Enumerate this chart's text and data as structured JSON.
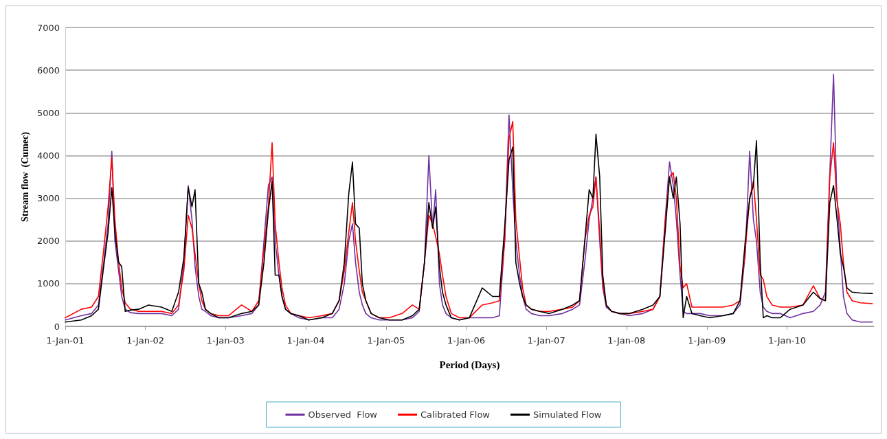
{
  "chart_data": {
    "type": "line",
    "xlabel": "Period (Days)",
    "ylabel": "Stream flow  (Cumec)",
    "x": [
      "2001-01-01",
      "2001-03-15",
      "2001-05-01",
      "2001-06-01",
      "2001-06-25",
      "2001-07-15",
      "2001-08-01",
      "2001-08-15",
      "2001-09-01",
      "2001-09-15",
      "2001-10-01",
      "2001-10-25",
      "2001-12-01",
      "2002-01-15",
      "2002-03-15",
      "2002-05-01",
      "2002-06-01",
      "2002-06-25",
      "2002-07-15",
      "2002-08-01",
      "2002-08-15",
      "2002-09-01",
      "2002-09-15",
      "2002-10-01",
      "2002-10-25",
      "2002-12-01",
      "2003-01-15",
      "2003-03-15",
      "2003-05-01",
      "2003-06-01",
      "2003-06-25",
      "2003-07-15",
      "2003-08-01",
      "2003-08-15",
      "2003-09-01",
      "2003-09-15",
      "2003-10-01",
      "2003-10-25",
      "2003-12-01",
      "2004-01-15",
      "2004-03-15",
      "2004-05-01",
      "2004-06-01",
      "2004-06-25",
      "2004-07-15",
      "2004-08-01",
      "2004-08-15",
      "2004-09-01",
      "2004-09-15",
      "2004-10-01",
      "2004-10-25",
      "2004-12-01",
      "2005-01-15",
      "2005-03-15",
      "2005-05-01",
      "2005-06-01",
      "2005-06-25",
      "2005-07-15",
      "2005-08-01",
      "2005-08-15",
      "2005-09-01",
      "2005-09-15",
      "2005-10-01",
      "2005-10-25",
      "2005-12-01",
      "2006-01-15",
      "2006-03-15",
      "2006-05-01",
      "2006-06-01",
      "2006-06-25",
      "2006-07-15",
      "2006-08-01",
      "2006-08-15",
      "2006-09-01",
      "2006-09-15",
      "2006-10-01",
      "2006-10-25",
      "2006-12-01",
      "2007-01-15",
      "2007-03-15",
      "2007-05-01",
      "2007-06-01",
      "2007-06-25",
      "2007-07-15",
      "2007-08-01",
      "2007-08-15",
      "2007-09-01",
      "2007-09-15",
      "2007-10-01",
      "2007-10-25",
      "2007-12-01",
      "2008-01-15",
      "2008-03-15",
      "2008-05-01",
      "2008-06-01",
      "2008-06-25",
      "2008-07-15",
      "2008-08-01",
      "2008-08-15",
      "2008-09-01",
      "2008-09-15",
      "2008-10-01",
      "2008-10-25",
      "2008-12-01",
      "2009-01-15",
      "2009-03-15",
      "2009-05-01",
      "2009-06-01",
      "2009-06-25",
      "2009-07-15",
      "2009-08-01",
      "2009-08-15",
      "2009-09-01",
      "2009-09-15",
      "2009-10-01",
      "2009-10-25",
      "2009-12-01",
      "2010-01-15",
      "2010-03-15",
      "2010-05-01",
      "2010-06-01",
      "2010-06-25",
      "2010-07-15",
      "2010-08-01",
      "2010-08-15",
      "2010-09-01",
      "2010-09-15",
      "2010-10-01",
      "2010-10-25",
      "2010-12-01",
      "2011-01-25"
    ],
    "series": [
      {
        "name": "Observed  Flow",
        "color": "#7030a0",
        "values": [
          150,
          250,
          300,
          500,
          1500,
          2400,
          4100,
          2000,
          1300,
          700,
          400,
          320,
          300,
          300,
          300,
          250,
          400,
          1500,
          3300,
          2500,
          1400,
          700,
          400,
          350,
          250,
          200,
          200,
          250,
          300,
          500,
          2000,
          3300,
          3500,
          2000,
          1200,
          700,
          400,
          300,
          200,
          150,
          200,
          200,
          400,
          1000,
          2000,
          2400,
          1500,
          800,
          500,
          300,
          200,
          150,
          150,
          150,
          200,
          350,
          1500,
          4000,
          2300,
          3200,
          1000,
          500,
          300,
          200,
          150,
          200,
          200,
          200,
          250,
          2000,
          4950,
          3200,
          2000,
          1200,
          700,
          400,
          300,
          250,
          250,
          300,
          400,
          500,
          1500,
          2500,
          3000,
          3500,
          2000,
          900,
          450,
          350,
          300,
          250,
          300,
          400,
          700,
          2500,
          3850,
          3300,
          2500,
          1200,
          350,
          300,
          300,
          300,
          250,
          250,
          300,
          500,
          1700,
          4100,
          2500,
          2000,
          800,
          450,
          350,
          300,
          300,
          200,
          300,
          350,
          500,
          800,
          3600,
          5900,
          3200,
          1800,
          700,
          300,
          150,
          100,
          100
        ]
      },
      {
        "name": "Calibrated Flow",
        "color": "#ff0000",
        "values": [
          200,
          400,
          450,
          700,
          1800,
          2800,
          3950,
          2500,
          1500,
          900,
          550,
          400,
          350,
          350,
          350,
          300,
          500,
          1300,
          2600,
          2300,
          1700,
          1000,
          600,
          400,
          300,
          250,
          250,
          500,
          350,
          600,
          1800,
          2800,
          4300,
          2400,
          1500,
          900,
          500,
          300,
          250,
          200,
          250,
          300,
          600,
          1300,
          2200,
          2900,
          2000,
          1300,
          800,
          600,
          300,
          200,
          200,
          300,
          500,
          400,
          1500,
          2600,
          2400,
          2100,
          1700,
          1200,
          700,
          300,
          200,
          200,
          500,
          550,
          600,
          2000,
          4400,
          4800,
          2500,
          1600,
          900,
          500,
          400,
          350,
          350,
          400,
          450,
          600,
          2000,
          2600,
          2800,
          3500,
          2200,
          1000,
          500,
          350,
          300,
          300,
          350,
          400,
          700,
          2400,
          3500,
          3600,
          3000,
          1400,
          900,
          1000,
          450,
          450,
          450,
          450,
          500,
          600,
          1800,
          3000,
          3400,
          2500,
          1200,
          1100,
          700,
          500,
          450,
          450,
          500,
          950,
          650,
          600,
          3500,
          4300,
          3000,
          2400,
          1500,
          800,
          600,
          550,
          530
        ]
      },
      {
        "name": "Simulated Flow",
        "color": "#000000",
        "values": [
          100,
          150,
          250,
          400,
          1400,
          2200,
          3250,
          2200,
          1500,
          1400,
          350,
          380,
          400,
          500,
          450,
          350,
          800,
          1600,
          3250,
          2800,
          3200,
          1000,
          800,
          400,
          300,
          200,
          200,
          300,
          350,
          500,
          1500,
          2700,
          3400,
          1200,
          1200,
          700,
          400,
          300,
          250,
          150,
          200,
          300,
          600,
          1500,
          3100,
          3850,
          2400,
          2300,
          1000,
          600,
          300,
          200,
          150,
          150,
          250,
          400,
          1500,
          2900,
          2300,
          2800,
          1400,
          800,
          500,
          200,
          150,
          200,
          900,
          700,
          700,
          2300,
          3900,
          4200,
          1500,
          1000,
          700,
          500,
          400,
          350,
          300,
          400,
          500,
          600,
          2000,
          3200,
          3000,
          4500,
          3500,
          1200,
          500,
          350,
          300,
          300,
          400,
          500,
          700,
          2200,
          3500,
          3000,
          3500,
          2400,
          200,
          700,
          300,
          250,
          200,
          250,
          300,
          600,
          2000,
          3000,
          3300,
          4350,
          1500,
          200,
          250,
          200,
          200,
          400,
          500,
          800,
          650,
          600,
          2900,
          3300,
          2600,
          1700,
          1400,
          900,
          800,
          780,
          770
        ]
      }
    ],
    "xlim": [
      "2001-01-01",
      "2011-02-01"
    ],
    "xticks": [
      {
        "value": "2001-01-01",
        "label": "1-Jan-01"
      },
      {
        "value": "2002-01-01",
        "label": "1-Jan-02"
      },
      {
        "value": "2003-01-01",
        "label": "1-Jan-03"
      },
      {
        "value": "2004-01-01",
        "label": "1-Jan-04"
      },
      {
        "value": "2005-01-01",
        "label": "1-Jan-05"
      },
      {
        "value": "2006-01-01",
        "label": "1-Jan-06"
      },
      {
        "value": "2007-01-01",
        "label": "1-Jan-07"
      },
      {
        "value": "2008-01-01",
        "label": "1-Jan-08"
      },
      {
        "value": "2009-01-01",
        "label": "1-Jan-09"
      },
      {
        "value": "2010-01-01",
        "label": "1-Jan-10"
      }
    ],
    "ylim": [
      0,
      7000
    ],
    "yticks": [
      0,
      1000,
      2000,
      3000,
      4000,
      5000,
      6000,
      7000
    ],
    "grid": "y",
    "legend": "bottom",
    "marker": "none",
    "line_style": "solid"
  }
}
